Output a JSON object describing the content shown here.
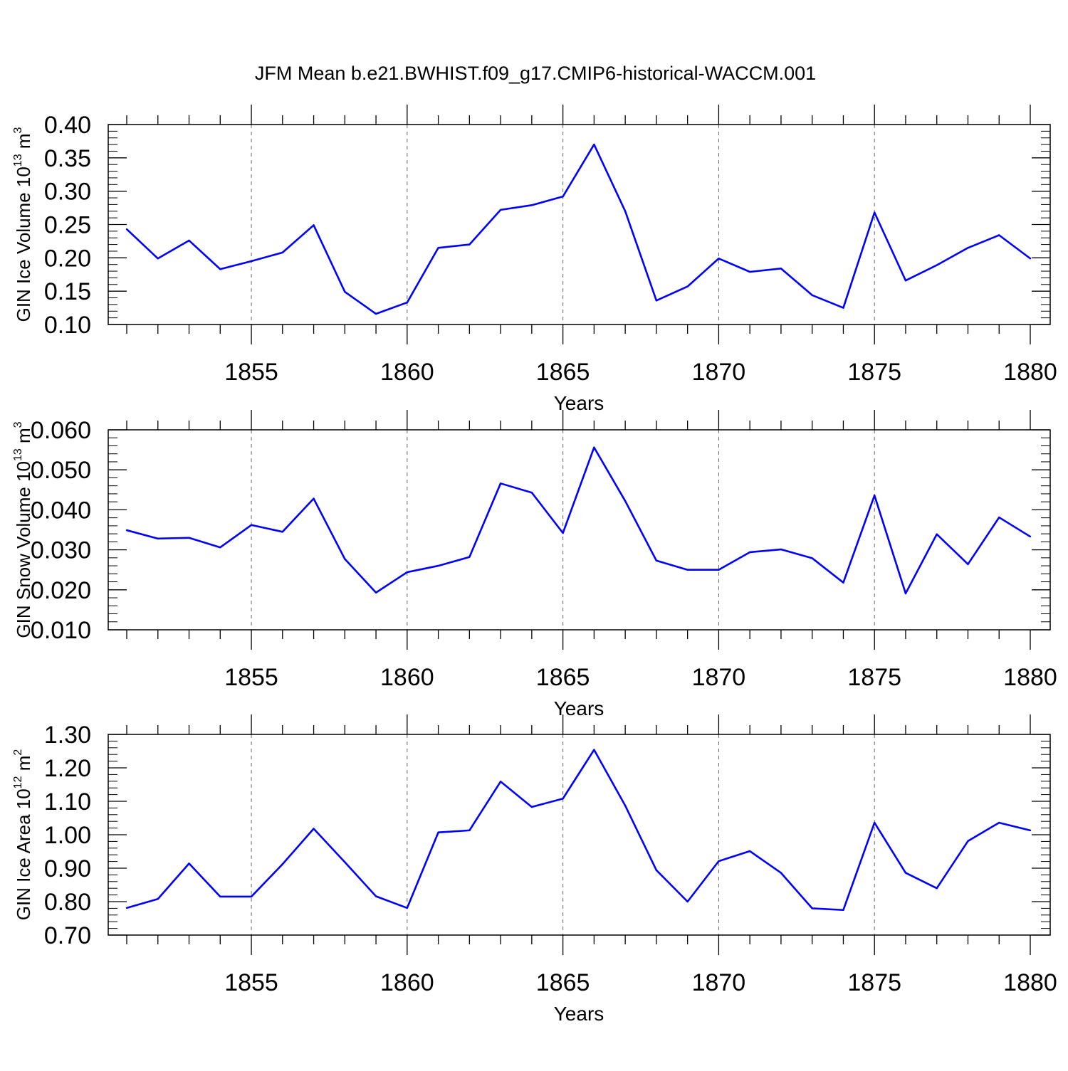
{
  "title": "JFM Mean b.e21.BWHIST.f09_g17.CMIP6-historical-WACCM.001",
  "line_color": "#0000ff",
  "chart_data": [
    {
      "type": "line",
      "title": "",
      "xlabel": "Years",
      "ylabel": {
        "text": "GIN Ice Volume 10",
        "exp": "13",
        "unit": " m",
        "unit_exp": "3"
      },
      "xlim": [
        1851,
        1880
      ],
      "ylim": [
        0.1,
        0.4
      ],
      "xticks": [
        "1855",
        "1860",
        "1865",
        "1870",
        "1875",
        "1880"
      ],
      "yticks": [
        "0.10",
        "0.15",
        "0.20",
        "0.25",
        "0.30",
        "0.35",
        "0.40"
      ],
      "grid": "vertical dashed at major x ticks",
      "x": [
        1851,
        1852,
        1853,
        1854,
        1855,
        1856,
        1857,
        1858,
        1859,
        1860,
        1861,
        1862,
        1863,
        1864,
        1865,
        1866,
        1867,
        1868,
        1869,
        1870,
        1871,
        1872,
        1873,
        1874,
        1875,
        1876,
        1877,
        1878,
        1879,
        1880
      ],
      "series": [
        {
          "values": [
            0.243,
            0.199,
            0.226,
            0.183,
            0.195,
            0.208,
            0.249,
            0.149,
            0.116,
            0.133,
            0.215,
            0.22,
            0.272,
            0.279,
            0.292,
            0.37,
            0.27,
            0.136,
            0.157,
            0.199,
            0.179,
            0.184,
            0.144,
            0.125,
            0.268,
            0.166,
            0.189,
            0.215,
            0.234,
            0.199
          ]
        }
      ]
    },
    {
      "type": "line",
      "title": "",
      "xlabel": "Years",
      "ylabel": {
        "text": "GIN Snow Volume 10",
        "exp": "13",
        "unit": " m",
        "unit_exp": "3"
      },
      "xlim": [
        1851,
        1880
      ],
      "ylim": [
        0.01,
        0.06
      ],
      "xticks": [
        "1855",
        "1860",
        "1865",
        "1870",
        "1875",
        "1880"
      ],
      "yticks": [
        "0.010",
        "0.020",
        "0.030",
        "0.040",
        "0.050",
        "0.060"
      ],
      "grid": "vertical dashed at major x ticks",
      "x": [
        1851,
        1852,
        1853,
        1854,
        1855,
        1856,
        1857,
        1858,
        1859,
        1860,
        1861,
        1862,
        1863,
        1864,
        1865,
        1866,
        1867,
        1868,
        1869,
        1870,
        1871,
        1872,
        1873,
        1874,
        1875,
        1876,
        1877,
        1878,
        1879,
        1880
      ],
      "series": [
        {
          "values": [
            0.0349,
            0.0328,
            0.033,
            0.0306,
            0.0362,
            0.0345,
            0.0428,
            0.0277,
            0.0193,
            0.0244,
            0.026,
            0.0282,
            0.0466,
            0.0443,
            0.0342,
            0.0556,
            0.0422,
            0.0273,
            0.025,
            0.025,
            0.0294,
            0.0301,
            0.0279,
            0.0218,
            0.0436,
            0.0191,
            0.0339,
            0.0264,
            0.0381,
            0.0333
          ]
        }
      ]
    },
    {
      "type": "line",
      "title": "",
      "xlabel": "Years",
      "ylabel": {
        "text": "GIN Ice Area 10",
        "exp": "12",
        "unit": " m",
        "unit_exp": "2"
      },
      "xlim": [
        1851,
        1880
      ],
      "ylim": [
        0.7,
        1.3
      ],
      "xticks": [
        "1855",
        "1860",
        "1865",
        "1870",
        "1875",
        "1880"
      ],
      "yticks": [
        "0.70",
        "0.80",
        "0.90",
        "1.00",
        "1.10",
        "1.20",
        "1.30"
      ],
      "grid": "vertical dashed at major x ticks",
      "x": [
        1851,
        1852,
        1853,
        1854,
        1855,
        1856,
        1857,
        1858,
        1859,
        1860,
        1861,
        1862,
        1863,
        1864,
        1865,
        1866,
        1867,
        1868,
        1869,
        1870,
        1871,
        1872,
        1873,
        1874,
        1875,
        1876,
        1877,
        1878,
        1879,
        1880
      ],
      "series": [
        {
          "values": [
            0.781,
            0.808,
            0.914,
            0.815,
            0.815,
            0.912,
            1.018,
            0.918,
            0.816,
            0.781,
            1.007,
            1.013,
            1.159,
            1.083,
            1.108,
            1.254,
            1.087,
            0.894,
            0.8,
            0.921,
            0.951,
            0.886,
            0.78,
            0.775,
            1.036,
            0.886,
            0.84,
            0.981,
            1.036,
            1.013
          ]
        }
      ]
    }
  ]
}
